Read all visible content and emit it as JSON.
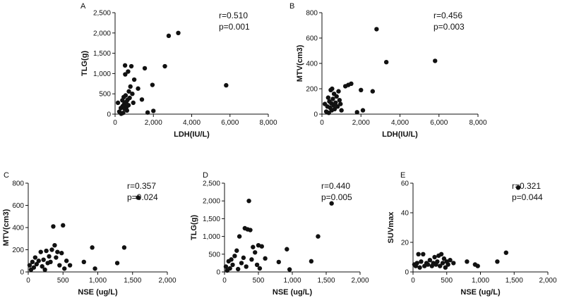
{
  "chart_data": [
    {
      "type": "scatter",
      "panel_label": "A",
      "xlabel": "LDH(IU/L)",
      "ylabel": "TLG(g)",
      "xlim": [
        0,
        8000
      ],
      "ylim": [
        0,
        2500
      ],
      "xticks": [
        0,
        2000,
        4000,
        6000,
        8000
      ],
      "xtick_labels": [
        "0",
        "2,000",
        "4,000",
        "6,000",
        "8,000"
      ],
      "yticks": [
        0,
        500,
        1000,
        1500,
        2000,
        2500
      ],
      "ytick_labels": [
        "0",
        "500",
        "1,000",
        "1,500",
        "2,000",
        "2,500"
      ],
      "annotations": [
        "r=0.510",
        "p=0.001"
      ],
      "points": [
        {
          "x": 150,
          "y": 280
        },
        {
          "x": 220,
          "y": 60
        },
        {
          "x": 300,
          "y": 150
        },
        {
          "x": 320,
          "y": 10
        },
        {
          "x": 380,
          "y": 340
        },
        {
          "x": 400,
          "y": 200
        },
        {
          "x": 420,
          "y": 30
        },
        {
          "x": 450,
          "y": 420
        },
        {
          "x": 480,
          "y": 250
        },
        {
          "x": 500,
          "y": 130
        },
        {
          "x": 520,
          "y": 1200
        },
        {
          "x": 530,
          "y": 980
        },
        {
          "x": 550,
          "y": 460
        },
        {
          "x": 580,
          "y": 300
        },
        {
          "x": 600,
          "y": 180
        },
        {
          "x": 620,
          "y": 90
        },
        {
          "x": 650,
          "y": 350
        },
        {
          "x": 680,
          "y": 1050
        },
        {
          "x": 700,
          "y": 220
        },
        {
          "x": 720,
          "y": 560
        },
        {
          "x": 760,
          "y": 400
        },
        {
          "x": 800,
          "y": 680
        },
        {
          "x": 850,
          "y": 1180
        },
        {
          "x": 900,
          "y": 500
        },
        {
          "x": 950,
          "y": 280
        },
        {
          "x": 1000,
          "y": 850
        },
        {
          "x": 1200,
          "y": 630
        },
        {
          "x": 1400,
          "y": 360
        },
        {
          "x": 1550,
          "y": 1130
        },
        {
          "x": 1700,
          "y": 40
        },
        {
          "x": 1950,
          "y": 720
        },
        {
          "x": 2000,
          "y": 80
        },
        {
          "x": 2600,
          "y": 1180
        },
        {
          "x": 2800,
          "y": 1930
        },
        {
          "x": 3300,
          "y": 2000
        },
        {
          "x": 5800,
          "y": 710
        }
      ]
    },
    {
      "type": "scatter",
      "panel_label": "B",
      "xlabel": "LDH(IU/L)",
      "ylabel": "MTV(cm3)",
      "xlim": [
        0,
        8000
      ],
      "ylim": [
        0,
        800
      ],
      "xticks": [
        0,
        2000,
        4000,
        6000,
        8000
      ],
      "xtick_labels": [
        "0",
        "2,000",
        "4,000",
        "6,000",
        "8,000"
      ],
      "yticks": [
        0,
        200,
        400,
        600,
        800
      ],
      "ytick_labels": [
        "0",
        "200",
        "400",
        "600",
        "800"
      ],
      "annotations": [
        "r=0.456",
        "p=0.003"
      ],
      "points": [
        {
          "x": 150,
          "y": 80
        },
        {
          "x": 220,
          "y": 20
        },
        {
          "x": 280,
          "y": 60
        },
        {
          "x": 320,
          "y": 130
        },
        {
          "x": 350,
          "y": 10
        },
        {
          "x": 380,
          "y": 100
        },
        {
          "x": 420,
          "y": 50
        },
        {
          "x": 450,
          "y": 190
        },
        {
          "x": 480,
          "y": 85
        },
        {
          "x": 500,
          "y": 30
        },
        {
          "x": 520,
          "y": 200
        },
        {
          "x": 560,
          "y": 120
        },
        {
          "x": 600,
          "y": 70
        },
        {
          "x": 620,
          "y": 160
        },
        {
          "x": 650,
          "y": 40
        },
        {
          "x": 700,
          "y": 90
        },
        {
          "x": 750,
          "y": 140
        },
        {
          "x": 800,
          "y": 60
        },
        {
          "x": 850,
          "y": 180
        },
        {
          "x": 900,
          "y": 110
        },
        {
          "x": 950,
          "y": 80
        },
        {
          "x": 1000,
          "y": 30
        },
        {
          "x": 1200,
          "y": 220
        },
        {
          "x": 1350,
          "y": 230
        },
        {
          "x": 1500,
          "y": 240
        },
        {
          "x": 1800,
          "y": 15
        },
        {
          "x": 2000,
          "y": 190
        },
        {
          "x": 2100,
          "y": 30
        },
        {
          "x": 2600,
          "y": 180
        },
        {
          "x": 2800,
          "y": 670
        },
        {
          "x": 3300,
          "y": 410
        },
        {
          "x": 5800,
          "y": 420
        }
      ]
    },
    {
      "type": "scatter",
      "panel_label": "C",
      "xlabel": "NSE (ug/L)",
      "ylabel": "MTV(cm3)",
      "xlim": [
        0,
        2000
      ],
      "ylim": [
        0,
        800
      ],
      "xticks": [
        0,
        500,
        1000,
        1500,
        2000
      ],
      "xtick_labels": [
        "0",
        "500",
        "1,000",
        "1,500",
        "2,000"
      ],
      "yticks": [
        0,
        200,
        400,
        600,
        800
      ],
      "ytick_labels": [
        "0",
        "200",
        "400",
        "600",
        "800"
      ],
      "annotations": [
        "r=0.357",
        "p=0.024"
      ],
      "points": [
        {
          "x": 20,
          "y": 60
        },
        {
          "x": 40,
          "y": 20
        },
        {
          "x": 60,
          "y": 90
        },
        {
          "x": 80,
          "y": 40
        },
        {
          "x": 100,
          "y": 130
        },
        {
          "x": 120,
          "y": 70
        },
        {
          "x": 150,
          "y": 100
        },
        {
          "x": 180,
          "y": 180
        },
        {
          "x": 200,
          "y": 50
        },
        {
          "x": 220,
          "y": 110
        },
        {
          "x": 240,
          "y": 20
        },
        {
          "x": 260,
          "y": 190
        },
        {
          "x": 280,
          "y": 80
        },
        {
          "x": 300,
          "y": 140
        },
        {
          "x": 320,
          "y": 90
        },
        {
          "x": 340,
          "y": 200
        },
        {
          "x": 360,
          "y": 410
        },
        {
          "x": 380,
          "y": 240
        },
        {
          "x": 400,
          "y": 130
        },
        {
          "x": 420,
          "y": 180
        },
        {
          "x": 450,
          "y": 60
        },
        {
          "x": 480,
          "y": 170
        },
        {
          "x": 500,
          "y": 420
        },
        {
          "x": 520,
          "y": 30
        },
        {
          "x": 550,
          "y": 100
        },
        {
          "x": 600,
          "y": 60
        },
        {
          "x": 800,
          "y": 90
        },
        {
          "x": 920,
          "y": 220
        },
        {
          "x": 960,
          "y": 30
        },
        {
          "x": 1280,
          "y": 80
        },
        {
          "x": 1380,
          "y": 220
        },
        {
          "x": 1580,
          "y": 670
        }
      ]
    },
    {
      "type": "scatter",
      "panel_label": "D",
      "xlabel": "NSE (ug/L)",
      "ylabel": "TLG(g)",
      "xlim": [
        0,
        2000
      ],
      "ylim": [
        0,
        2500
      ],
      "xticks": [
        0,
        500,
        1000,
        1500,
        2000
      ],
      "xtick_labels": [
        "0",
        "500",
        "1,000",
        "1,500",
        "2,000"
      ],
      "yticks": [
        0,
        500,
        1000,
        1500,
        2000,
        2500
      ],
      "ytick_labels": [
        "0",
        "500",
        "1,000",
        "1,500",
        "2,000",
        "2,500"
      ],
      "annotations": [
        "r=0.440",
        "p=0.005"
      ],
      "points": [
        {
          "x": 20,
          "y": 150
        },
        {
          "x": 40,
          "y": 40
        },
        {
          "x": 60,
          "y": 300
        },
        {
          "x": 80,
          "y": 100
        },
        {
          "x": 100,
          "y": 350
        },
        {
          "x": 120,
          "y": 200
        },
        {
          "x": 150,
          "y": 450
        },
        {
          "x": 180,
          "y": 600
        },
        {
          "x": 200,
          "y": 80
        },
        {
          "x": 220,
          "y": 1000
        },
        {
          "x": 250,
          "y": 250
        },
        {
          "x": 280,
          "y": 400
        },
        {
          "x": 300,
          "y": 1230
        },
        {
          "x": 320,
          "y": 150
        },
        {
          "x": 340,
          "y": 1200
        },
        {
          "x": 360,
          "y": 2000
        },
        {
          "x": 380,
          "y": 1180
        },
        {
          "x": 400,
          "y": 350
        },
        {
          "x": 420,
          "y": 700
        },
        {
          "x": 450,
          "y": 550
        },
        {
          "x": 480,
          "y": 200
        },
        {
          "x": 500,
          "y": 750
        },
        {
          "x": 520,
          "y": 100
        },
        {
          "x": 550,
          "y": 720
        },
        {
          "x": 600,
          "y": 380
        },
        {
          "x": 800,
          "y": 280
        },
        {
          "x": 920,
          "y": 640
        },
        {
          "x": 960,
          "y": 70
        },
        {
          "x": 1280,
          "y": 300
        },
        {
          "x": 1380,
          "y": 1000
        },
        {
          "x": 1580,
          "y": 1930
        }
      ]
    },
    {
      "type": "scatter",
      "panel_label": "E",
      "xlabel": "NSE (ug/L)",
      "ylabel": "SUVmax",
      "xlim": [
        0,
        2000
      ],
      "ylim": [
        0,
        60
      ],
      "xticks": [
        0,
        500,
        1000,
        1500,
        2000
      ],
      "xtick_labels": [
        "0",
        "500",
        "1,000",
        "1,500",
        "2,000"
      ],
      "yticks": [
        0,
        20,
        40,
        60
      ],
      "ytick_labels": [
        "0",
        "20",
        "40",
        "60"
      ],
      "annotations": [
        "r=0.321",
        "p=0.044"
      ],
      "points": [
        {
          "x": 20,
          "y": 5
        },
        {
          "x": 40,
          "y": 4
        },
        {
          "x": 60,
          "y": 6
        },
        {
          "x": 80,
          "y": 12
        },
        {
          "x": 100,
          "y": 3
        },
        {
          "x": 120,
          "y": 7
        },
        {
          "x": 150,
          "y": 12
        },
        {
          "x": 170,
          "y": 4
        },
        {
          "x": 200,
          "y": 6
        },
        {
          "x": 220,
          "y": 5
        },
        {
          "x": 250,
          "y": 8
        },
        {
          "x": 280,
          "y": 4
        },
        {
          "x": 300,
          "y": 6
        },
        {
          "x": 320,
          "y": 10
        },
        {
          "x": 340,
          "y": 5
        },
        {
          "x": 360,
          "y": 7
        },
        {
          "x": 380,
          "y": 11
        },
        {
          "x": 400,
          "y": 4
        },
        {
          "x": 420,
          "y": 12
        },
        {
          "x": 440,
          "y": 6
        },
        {
          "x": 460,
          "y": 9
        },
        {
          "x": 480,
          "y": 3
        },
        {
          "x": 500,
          "y": 7
        },
        {
          "x": 520,
          "y": 5
        },
        {
          "x": 550,
          "y": 8
        },
        {
          "x": 600,
          "y": 6
        },
        {
          "x": 800,
          "y": 7
        },
        {
          "x": 920,
          "y": 5
        },
        {
          "x": 960,
          "y": 4
        },
        {
          "x": 1250,
          "y": 7
        },
        {
          "x": 1380,
          "y": 13
        },
        {
          "x": 1560,
          "y": 57
        }
      ]
    }
  ]
}
